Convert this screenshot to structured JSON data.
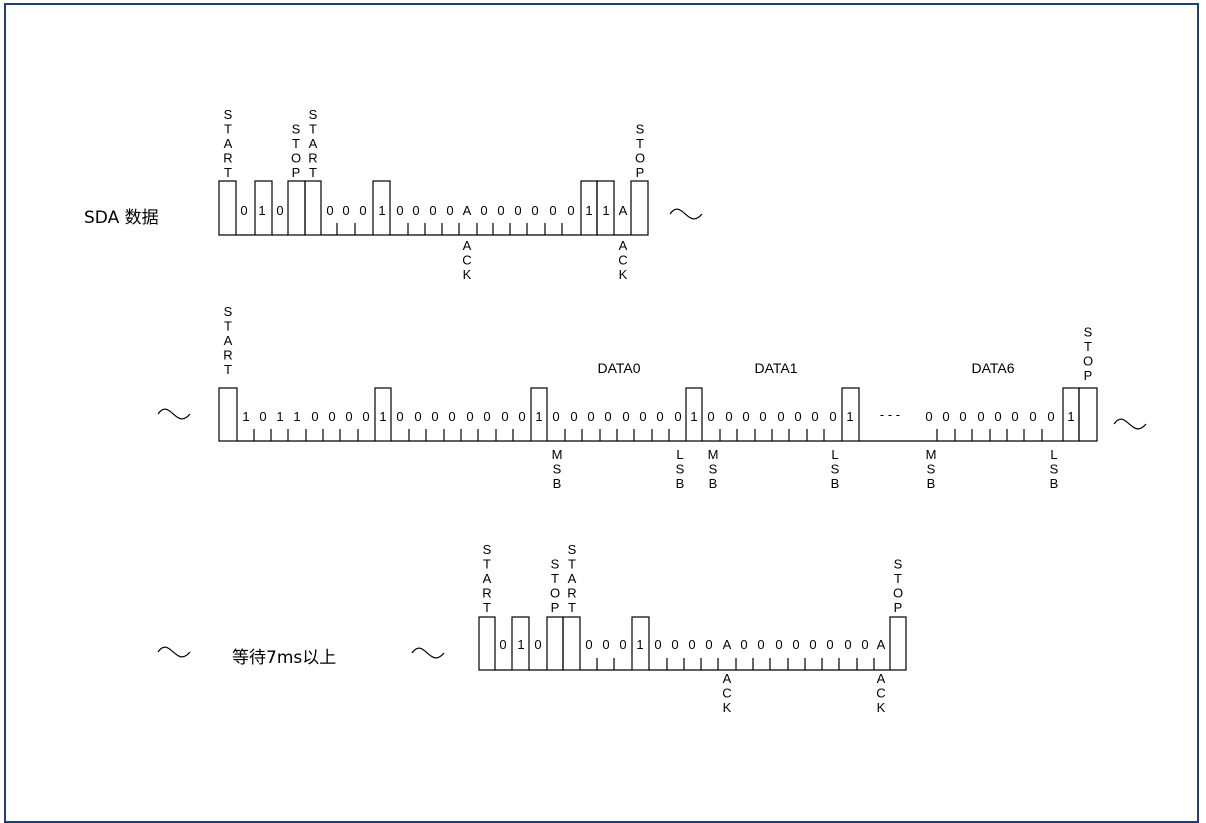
{
  "colors": {
    "frame_border": "#1f3f6e",
    "line": "#000000",
    "background": "#ffffff"
  },
  "labels": {
    "sda": "SDA 数据",
    "wait": "等待7ms以上",
    "start": "START",
    "stop": "STOP",
    "ack": "ACK",
    "msb": "MSB",
    "lsb": "LSB",
    "ack_char": "A",
    "data0": "DATA0",
    "data1": "DATA1",
    "data6": "DATA6",
    "dashes": "- - -"
  },
  "rows": [
    {
      "name": "row1",
      "sequence": [
        "START",
        "0",
        "1",
        "0",
        "STOP",
        "START",
        "0",
        "0",
        "0",
        "1",
        "0",
        "0",
        "0",
        "0",
        "A",
        "0",
        "0",
        "0",
        "0",
        "0",
        "0",
        "1",
        "1",
        "A",
        "STOP"
      ]
    },
    {
      "name": "row2",
      "sequence": [
        "START",
        "1",
        "0",
        "1",
        "1",
        "0",
        "0",
        "0",
        "0",
        "1",
        "0",
        "0",
        "0",
        "0",
        "0",
        "0",
        "0",
        "0",
        "1",
        "0",
        "0",
        "0",
        "0",
        "0",
        "0",
        "0",
        "0",
        "1",
        "0",
        "0",
        "0",
        "0",
        "0",
        "0",
        "0",
        "0",
        "1",
        "...",
        "0",
        "0",
        "0",
        "0",
        "0",
        "0",
        "0",
        "0",
        "1",
        "STOP"
      ],
      "data_labels": [
        "DATA0",
        "DATA1",
        "DATA6"
      ]
    },
    {
      "name": "row3",
      "sequence": [
        "START",
        "0",
        "1",
        "0",
        "STOP",
        "START",
        "0",
        "0",
        "0",
        "1",
        "0",
        "0",
        "0",
        "0",
        "A",
        "0",
        "0",
        "0",
        "0",
        "0",
        "0",
        "0",
        "0",
        "A",
        "STOP"
      ]
    }
  ]
}
